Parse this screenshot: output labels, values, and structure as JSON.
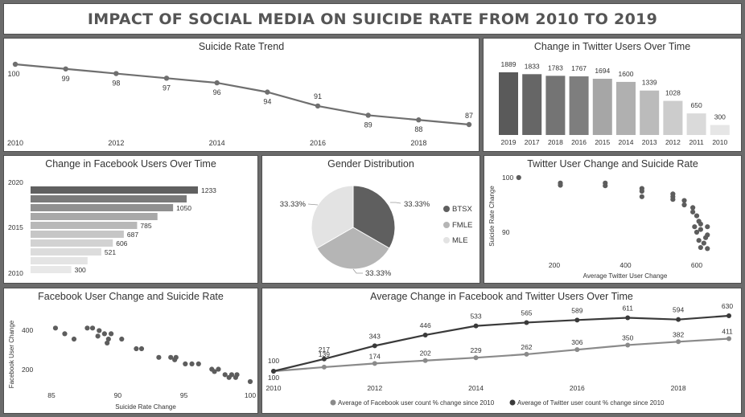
{
  "header": {
    "title": "IMPACT OF SOCIAL MEDIA ON SUICIDE RATE FROM 2010 TO 2019"
  },
  "colors": {
    "dark": "#555555",
    "line": "#6f6f6f",
    "medium": "#a9a9a9",
    "light": "#dcdcdc",
    "pie_btsx": "#5f5f5f",
    "pie_fmle": "#b5b5b5",
    "pie_mle": "#e3e3e3",
    "avg_facebook": "#8a8a8a",
    "avg_twitter": "#3a3a3a"
  },
  "chart_data": [
    {
      "id": "suicide-trend",
      "type": "line",
      "title": "Suicide Rate Trend",
      "x": [
        2010,
        2011,
        2012,
        2013,
        2014,
        2015,
        2016,
        2017,
        2018,
        2019
      ],
      "values": [
        100,
        99,
        98,
        97,
        96,
        94,
        91,
        89,
        88,
        87
      ],
      "x_ticks": [
        "2010",
        "2012",
        "2014",
        "2016",
        "2018"
      ],
      "ylim": [
        87,
        100
      ]
    },
    {
      "id": "twitter-users",
      "type": "bar",
      "title": "Change in Twitter Users Over Time",
      "categories": [
        "2019",
        "2017",
        "2018",
        "2016",
        "2015",
        "2014",
        "2013",
        "2012",
        "2011",
        "2010"
      ],
      "values": [
        1889,
        1833,
        1783,
        1767,
        1694,
        1600,
        1339,
        1028,
        650,
        300
      ]
    },
    {
      "id": "facebook-users",
      "type": "bar",
      "title": "Change in Facebook Users Over Time",
      "orientation": "horizontal",
      "values": [
        1233,
        1150,
        1050,
        785,
        687,
        606,
        521,
        300
      ],
      "y_ticks": [
        "2020",
        "2015",
        "2010"
      ]
    },
    {
      "id": "gender",
      "type": "pie",
      "title": "Gender Distribution",
      "slices": [
        {
          "label": "BTSX",
          "value": 33.33,
          "display": "33.33%"
        },
        {
          "label": "FMLE",
          "value": 33.33,
          "display": "33.33%"
        },
        {
          "label": "MLE",
          "value": 33.33,
          "display": "33.33%"
        }
      ],
      "legend_position": "right"
    },
    {
      "id": "twitter-scatter",
      "type": "scatter",
      "title": "Twitter User Change and Suicide Rate",
      "xlabel": "Average Twitter User Change",
      "ylabel": "Suicide Rate Change",
      "x_ticks": [
        200,
        400,
        600
      ],
      "y_ticks": [
        90,
        100
      ],
      "xlim": [
        100,
        650
      ],
      "ylim": [
        84,
        101
      ],
      "points": [
        [
          100,
          100
        ],
        [
          217,
          99
        ],
        [
          217,
          98.6
        ],
        [
          343,
          99
        ],
        [
          343,
          98.5
        ],
        [
          446,
          98
        ],
        [
          446,
          97.5
        ],
        [
          446,
          96.5
        ],
        [
          533,
          97
        ],
        [
          533,
          96.5
        ],
        [
          533,
          96
        ],
        [
          565,
          95.8
        ],
        [
          565,
          95
        ],
        [
          589,
          94.5
        ],
        [
          589,
          93.7
        ],
        [
          600,
          93
        ],
        [
          606,
          92
        ],
        [
          611,
          91.5
        ],
        [
          594,
          91
        ],
        [
          611,
          90.5
        ],
        [
          600,
          90
        ],
        [
          630,
          91
        ],
        [
          630,
          89.5
        ],
        [
          625,
          89
        ],
        [
          606,
          88.5
        ],
        [
          620,
          88
        ],
        [
          611,
          87.2
        ],
        [
          630,
          87
        ]
      ]
    },
    {
      "id": "facebook-scatter",
      "type": "scatter",
      "title": "Facebook User Change and Suicide Rate",
      "xlabel": "Suicide Rate Change",
      "ylabel": "Facebook User Change",
      "x_ticks": [
        85,
        90,
        95,
        100
      ],
      "y_ticks": [
        200,
        400
      ],
      "xlim": [
        84,
        100.3
      ],
      "ylim": [
        100,
        460
      ],
      "points": [
        [
          85.3,
          411
        ],
        [
          86,
          382
        ],
        [
          86.7,
          355
        ],
        [
          87.7,
          411
        ],
        [
          88.1,
          411
        ],
        [
          88.6,
          398
        ],
        [
          89,
          382
        ],
        [
          89.5,
          382
        ],
        [
          88.5,
          370
        ],
        [
          89.3,
          355
        ],
        [
          89.2,
          335
        ],
        [
          90.3,
          355
        ],
        [
          91.4,
          306
        ],
        [
          91.8,
          306
        ],
        [
          93.1,
          262
        ],
        [
          94,
          262
        ],
        [
          94.4,
          262
        ],
        [
          94.3,
          250
        ],
        [
          95.1,
          229
        ],
        [
          95.6,
          229
        ],
        [
          96.1,
          229
        ],
        [
          97.1,
          202
        ],
        [
          97.6,
          202
        ],
        [
          97.3,
          190
        ],
        [
          98.1,
          174
        ],
        [
          98.6,
          174
        ],
        [
          99,
          174
        ],
        [
          98.4,
          160
        ],
        [
          98.9,
          160
        ],
        [
          100,
          139
        ]
      ]
    },
    {
      "id": "avg-change",
      "type": "line",
      "title": "Average Change in Facebook and Twitter Users Over Time",
      "x": [
        2010,
        2011,
        2012,
        2013,
        2014,
        2015,
        2016,
        2017,
        2018,
        2019
      ],
      "x_ticks": [
        "2010",
        "2012",
        "2014",
        "2016",
        "2018"
      ],
      "ylim": [
        100,
        630
      ],
      "series": [
        {
          "name": "Average of Facebook user count % change since 2010",
          "values": [
            100,
            139,
            174,
            202,
            229,
            262,
            306,
            350,
            382,
            411
          ]
        },
        {
          "name": "Average of Twitter user count % change since 2010",
          "values": [
            100,
            217,
            343,
            446,
            533,
            565,
            589,
            611,
            594,
            630
          ]
        }
      ],
      "legend_position": "bottom"
    }
  ]
}
